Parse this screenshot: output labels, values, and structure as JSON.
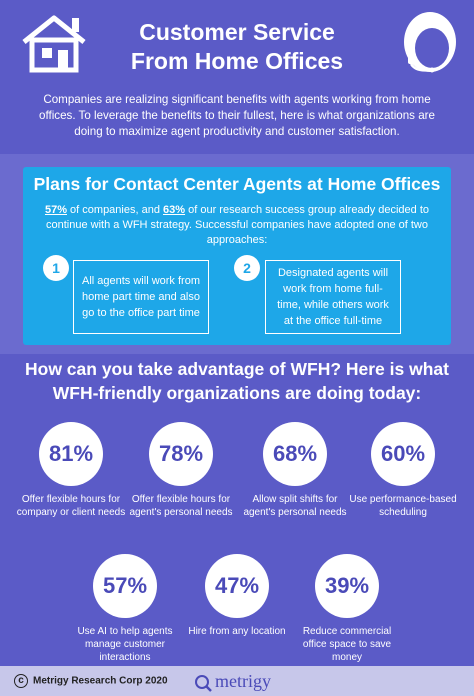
{
  "header": {
    "title_line1": "Customer Service",
    "title_line2": "From Home Offices",
    "intro": "Companies are realizing significant benefits with agents working from home offices. To leverage the benefits to their fullest, here is what organizations are doing to maximize agent productivity and customer satisfaction."
  },
  "plans": {
    "title": "Plans for Contact Center Agents at Home Offices",
    "pct1": "57%",
    "text1": " of companies, and ",
    "pct2": "63%",
    "text2": " of our research success group already decided to continue with a WFH strategy. Successful companies have adopted one of two approaches:",
    "approaches": [
      {
        "num": "1",
        "text": "All agents will work from home part time and also go to the office part time"
      },
      {
        "num": "2",
        "text": "Designated agents will work from home full-time, while others work at the office full-time"
      }
    ]
  },
  "wfh": {
    "title_line1": "How can you take advantage of WFH? Here is what",
    "title_line2": "WFH-friendly organizations are doing today:"
  },
  "stats": [
    {
      "value": "81%",
      "label": "Offer flexible hours for company or client needs"
    },
    {
      "value": "78%",
      "label": "Offer flexible hours for agent's personal needs"
    },
    {
      "value": "68%",
      "label": "Allow split shifts for agent's personal needs"
    },
    {
      "value": "60%",
      "label": "Use performance-based scheduling"
    },
    {
      "value": "57%",
      "label": "Use AI to help agents manage customer interactions"
    },
    {
      "value": "47%",
      "label": "Hire from any location"
    },
    {
      "value": "39%",
      "label": "Reduce commercial office space to save money"
    }
  ],
  "footer": {
    "copyright": "Metrigy Research Corp 2020",
    "logo": "metrigy"
  },
  "colors": {
    "background": "#5b5bc7",
    "plans_band": "#6b6bcf",
    "plans_box": "#1ea7e8",
    "circle_text": "#4a4ab8",
    "footer": "#c7c7ea"
  }
}
